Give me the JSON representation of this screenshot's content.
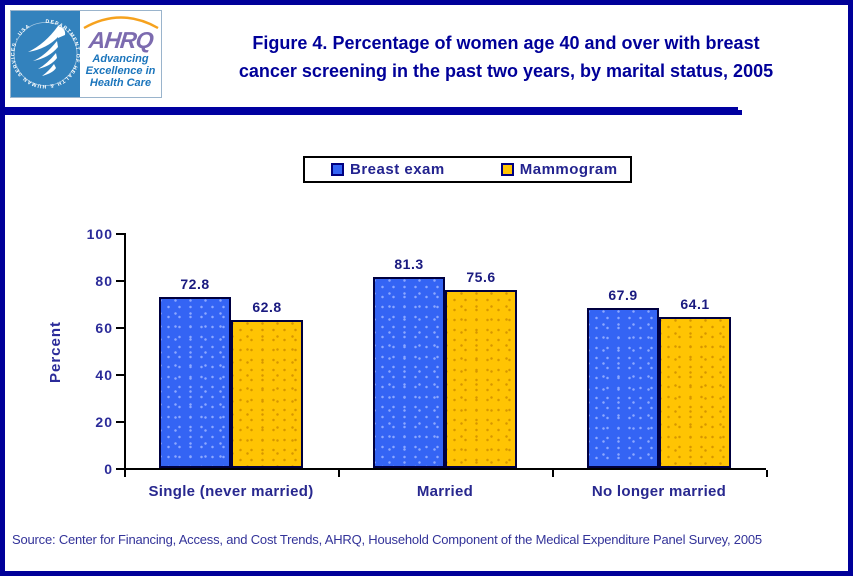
{
  "header": {
    "logo": {
      "ring_text": "DEPARTMENT OF HEALTH & HUMAN SERVICES - USA",
      "acronym": "AHRQ",
      "tagline_line1": "Advancing",
      "tagline_line2": "Excellence in",
      "tagline_line3": "Health Care"
    },
    "title_line1": "Figure 4. Percentage of women age 40 and over with breast",
    "title_line2": "cancer screening in the past two years, by marital status, 2005"
  },
  "chart_data": {
    "type": "bar",
    "title": "Percentage of women age 40 and over with breast cancer screening in the past two years, by marital status, 2005",
    "categories": [
      "Single (never married)",
      "Married",
      "No longer married"
    ],
    "series": [
      {
        "name": "Breast exam",
        "color": "#3464F4",
        "dot_color": "#8CA8FF",
        "values": [
          72.8,
          81.3,
          67.9
        ]
      },
      {
        "name": "Mammogram",
        "color": "#FFC403",
        "dot_color": "#D79600",
        "values": [
          62.8,
          75.6,
          64.1
        ]
      }
    ],
    "ylabel": "Percent",
    "xlabel": "",
    "ylim": [
      0,
      100
    ],
    "yticks": [
      0,
      20,
      40,
      60,
      80,
      100
    ],
    "legend_position": "top-center",
    "grid": false,
    "value_labels_shown": true
  },
  "source_note": "Source: Center for Financing, Access, and Cost Trends, AHRQ, Household Component of the Medical Expenditure Panel Survey, 2005"
}
